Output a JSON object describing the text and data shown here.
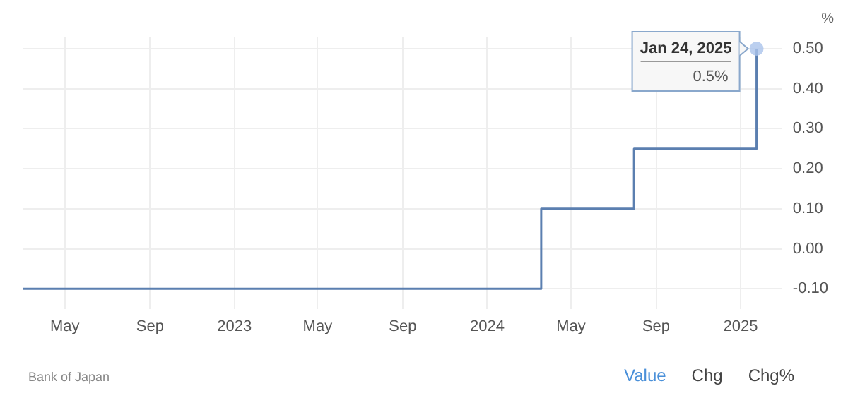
{
  "chart_data": {
    "type": "step",
    "ylabel": "%",
    "x": [
      "2022-03-01",
      "2024-03-19",
      "2024-07-31",
      "2025-01-24"
    ],
    "series": [
      {
        "color": "#5b7fb0",
        "values": [
          -0.1,
          0.1,
          0.25,
          0.5
        ]
      }
    ],
    "xlim": [
      "2022-03-01",
      "2025-03-01"
    ],
    "xticks": [
      {
        "value": "2022-05-01",
        "label": "May"
      },
      {
        "value": "2022-09-01",
        "label": "Sep"
      },
      {
        "value": "2023-01-01",
        "label": "2023"
      },
      {
        "value": "2023-05-01",
        "label": "May"
      },
      {
        "value": "2023-09-01",
        "label": "Sep"
      },
      {
        "value": "2024-01-01",
        "label": "2024"
      },
      {
        "value": "2024-05-01",
        "label": "May"
      },
      {
        "value": "2024-09-01",
        "label": "Sep"
      },
      {
        "value": "2025-01-01",
        "label": "2025"
      }
    ],
    "ylim": [
      -0.15,
      0.53
    ],
    "yticks": [
      {
        "value": -0.1,
        "label": "-0.10"
      },
      {
        "value": 0,
        "label": "0.00"
      },
      {
        "value": 0.1,
        "label": "0.10"
      },
      {
        "value": 0.2,
        "label": "0.20"
      },
      {
        "value": 0.3,
        "label": "0.30"
      },
      {
        "value": 0.4,
        "label": "0.40"
      },
      {
        "value": 0.5,
        "label": "0.50"
      }
    ],
    "grid": true,
    "legend": false,
    "marker": "none",
    "line_style": "solid",
    "annotations": [
      {
        "text": "Jan 24, 2025",
        "x": "2025-01-24",
        "y": 0.5
      },
      {
        "text": "0.5%",
        "x": "2025-01-24",
        "y": 0.5
      },
      "Bank of Japan",
      "Value",
      "Chg",
      "Chg%"
    ]
  }
}
